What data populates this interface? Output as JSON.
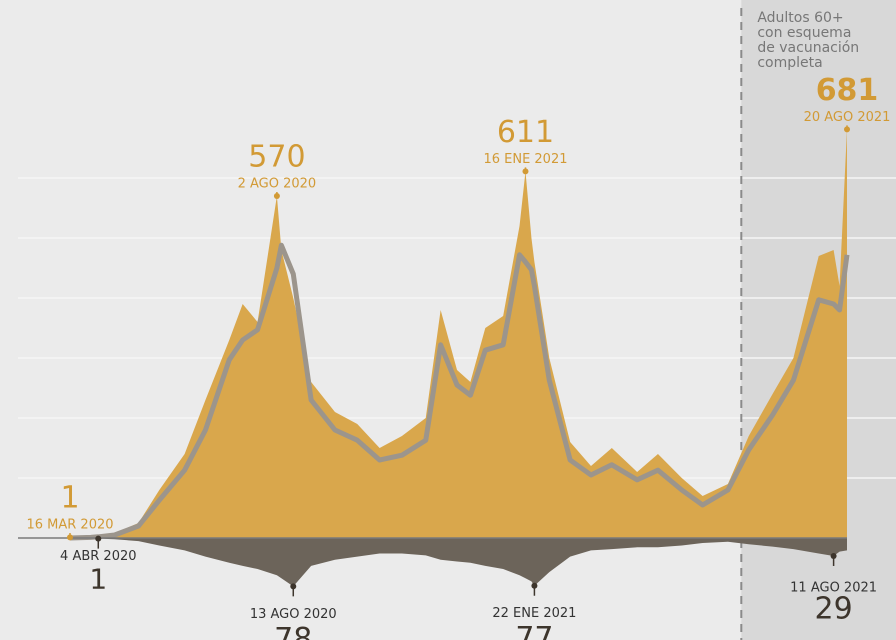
{
  "chart_data": {
    "type": "area",
    "x": [
      "2020-03-16",
      "2020-03-30",
      "2020-04-04",
      "2020-04-15",
      "2020-05-01",
      "2020-05-15",
      "2020-06-01",
      "2020-06-15",
      "2020-07-01",
      "2020-07-10",
      "2020-07-20",
      "2020-08-02",
      "2020-08-05",
      "2020-08-13",
      "2020-08-25",
      "2020-09-10",
      "2020-09-25",
      "2020-10-10",
      "2020-10-25",
      "2020-11-10",
      "2020-11-20",
      "2020-12-01",
      "2020-12-10",
      "2020-12-20",
      "2021-01-01",
      "2021-01-12",
      "2021-01-16",
      "2021-01-20",
      "2021-01-22",
      "2021-02-01",
      "2021-02-15",
      "2021-03-01",
      "2021-03-15",
      "2021-04-01",
      "2021-04-15",
      "2021-05-01",
      "2021-05-15",
      "2021-06-01",
      "2021-06-15",
      "2021-07-01",
      "2021-07-15",
      "2021-08-01",
      "2021-08-11",
      "2021-08-15",
      "2021-08-20"
    ],
    "series": [
      {
        "color": "#d9a74c",
        "values": [
          1,
          3,
          5,
          8,
          25,
          80,
          140,
          230,
          330,
          390,
          360,
          570,
          480,
          400,
          260,
          210,
          190,
          150,
          170,
          200,
          380,
          280,
          260,
          350,
          370,
          520,
          611,
          500,
          460,
          300,
          160,
          120,
          150,
          110,
          140,
          100,
          70,
          90,
          170,
          240,
          300,
          470,
          480,
          420,
          681
        ]
      },
      {
        "color": "#9c958c",
        "values": [
          0,
          1,
          2,
          5,
          20,
          63,
          113,
          180,
          297,
          330,
          347,
          450,
          488,
          440,
          230,
          180,
          163,
          130,
          138,
          163,
          322,
          255,
          238,
          313,
          322,
          472,
          460,
          447,
          420,
          263,
          130,
          105,
          122,
          97,
          113,
          80,
          55,
          80,
          147,
          205,
          263,
          397,
          390,
          380,
          472
        ]
      },
      {
        "color": "#6c645a",
        "axis": "y2",
        "values": [
          0,
          0,
          1,
          2,
          5,
          12,
          20,
          30,
          40,
          45,
          50,
          60,
          65,
          78,
          45,
          35,
          30,
          25,
          25,
          28,
          35,
          38,
          40,
          45,
          50,
          60,
          65,
          70,
          77,
          55,
          30,
          20,
          18,
          15,
          15,
          12,
          8,
          6,
          10,
          14,
          18,
          25,
          29,
          22,
          20
        ]
      }
    ],
    "ylim": [
      0,
      700
    ],
    "y2lim": [
      0,
      100
    ],
    "grid_lines": [
      100,
      200,
      300,
      400,
      500,
      600
    ],
    "annotations": [
      {
        "series": 0,
        "index": 0,
        "text": "16 MAR 2020"
      },
      {
        "series": 2,
        "index": 2,
        "text": "4 ABR 2020"
      },
      {
        "series": 0,
        "index": 11,
        "text": "2 AGO 2020"
      },
      {
        "series": 0,
        "index": 26,
        "text": "16 ENE 2021"
      },
      {
        "series": 0,
        "index": 44,
        "text": "20 AGO 2021"
      },
      {
        "series": 2,
        "index": 13,
        "text": "13 AGO 2020"
      },
      {
        "series": 2,
        "index": 28,
        "text": "22 ENE 2021"
      },
      {
        "series": 2,
        "index": 42,
        "text": "11 AGO 2021"
      }
    ],
    "shaded_from": "2021-06-10",
    "shaded_label": [
      "Adultos 60+",
      "con esquema",
      "de vacunación",
      "completa"
    ]
  }
}
